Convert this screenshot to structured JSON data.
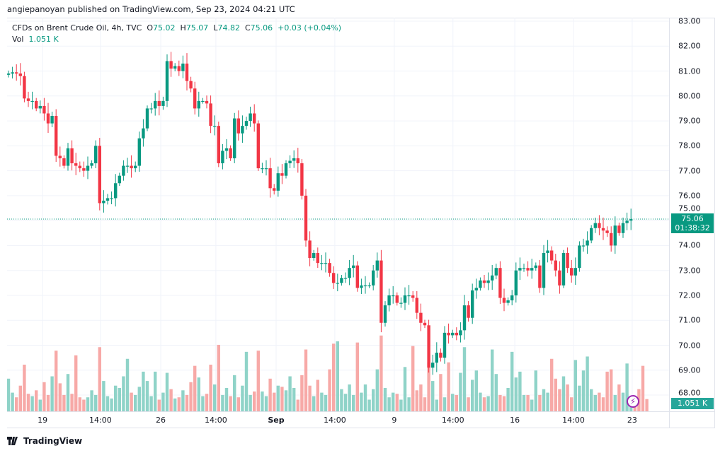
{
  "header": {
    "published": "angiepanoyan published on TradingView.com, Sep 23, 2024 04:21 UTC"
  },
  "legend": {
    "symbol": "CFDs on Brent Crude Oil, 4h, TVC",
    "o_label": "O",
    "o": "75.02",
    "h_label": "H",
    "h": "75.07",
    "l_label": "L",
    "l": "74.82",
    "c_label": "C",
    "c": "75.06",
    "change": "+0.03 (+0.04%)",
    "vol_label": "Vol",
    "vol": "1.051 K"
  },
  "price_label": {
    "price": "75.06",
    "countdown": "01:38:32"
  },
  "volume_label": "1.051 K",
  "footer": {
    "brand": "TradingView"
  },
  "colors": {
    "up": "#089981",
    "down": "#f23645",
    "vol_up": "#8fd3c8",
    "vol_down": "#f7a9a7",
    "line": "#089981"
  },
  "chart_data": {
    "type": "candlestick",
    "title": "CFDs on Brent Crude Oil, 4h, TVC",
    "ylim": [
      67.5,
      83.2
    ],
    "y_ticks": [
      "68.00",
      "69.00",
      "70.00",
      "71.00",
      "72.00",
      "73.00",
      "74.00",
      "75.00",
      "76.00",
      "77.00",
      "78.00",
      "79.00",
      "80.00",
      "81.00",
      "82.00",
      "83.00"
    ],
    "x_ticks": [
      {
        "label": "19",
        "bar": 8.6
      },
      {
        "label": "14:00",
        "bar": 23.2
      },
      {
        "label": "26",
        "bar": 38.4
      },
      {
        "label": "14:00",
        "bar": 52.3
      },
      {
        "label": "Sep",
        "bar": 67.5
      },
      {
        "label": "14:00",
        "bar": 82.3
      },
      {
        "label": "9",
        "bar": 97.3
      },
      {
        "label": "14:00",
        "bar": 112.1
      },
      {
        "label": "16",
        "bar": 127.7
      },
      {
        "label": "14:00",
        "bar": 142.5
      },
      {
        "label": "23",
        "bar": 157.3
      }
    ],
    "first_open": 80.85,
    "closes": [
      80.9,
      80.95,
      80.9,
      80.8,
      79.9,
      79.8,
      79.8,
      79.5,
      79.6,
      79.3,
      78.9,
      79.2,
      77.6,
      77.5,
      77.2,
      77.9,
      77.3,
      77.2,
      77.1,
      77.0,
      77.2,
      77.3,
      78.0,
      75.7,
      75.8,
      75.9,
      75.9,
      76.5,
      76.8,
      77.2,
      77.2,
      77.1,
      77.2,
      78.3,
      78.7,
      79.5,
      79.5,
      79.8,
      79.6,
      79.8,
      81.4,
      81.1,
      81.2,
      81.0,
      81.3,
      80.6,
      80.3,
      79.5,
      79.8,
      79.8,
      79.7,
      78.8,
      78.8,
      77.3,
      77.8,
      77.9,
      77.5,
      79.1,
      78.5,
      78.8,
      79.0,
      79.3,
      78.9,
      77.1,
      77.1,
      77.1,
      76.3,
      76.2,
      76.9,
      76.8,
      77.3,
      77.4,
      77.5,
      77.3,
      76.0,
      74.2,
      73.5,
      73.7,
      73.3,
      73.3,
      73.3,
      72.9,
      72.5,
      72.5,
      72.7,
      72.7,
      73.1,
      73.2,
      72.3,
      72.4,
      72.4,
      72.4,
      73.0,
      73.4,
      70.9,
      71.6,
      72.0,
      72.0,
      71.7,
      71.7,
      72.0,
      72.0,
      71.9,
      71.3,
      70.9,
      70.8,
      69.1,
      69.3,
      69.7,
      69.5,
      70.5,
      70.4,
      70.5,
      70.4,
      70.6,
      71.6,
      71.1,
      72.2,
      72.3,
      72.6,
      72.5,
      72.6,
      72.8,
      73.1,
      71.9,
      71.7,
      71.8,
      72.0,
      73.0,
      73.1,
      73.1,
      73.0,
      73.1,
      73.2,
      72.3,
      73.7,
      73.8,
      73.4,
      73.0,
      72.4,
      73.7,
      73.1,
      72.8,
      73.1,
      74.0,
      74.0,
      74.2,
      74.7,
      74.9,
      74.7,
      74.6,
      74.5,
      74.0,
      74.8,
      74.5,
      74.9,
      75.0,
      75.06
    ],
    "volumes_k": [
      2.8,
      1.6,
      1.2,
      2.2,
      4.0,
      1.5,
      1.3,
      1.8,
      1.0,
      2.5,
      1.4,
      3.0,
      5.2,
      2.4,
      1.4,
      3.2,
      1.5,
      4.8,
      1.2,
      1.0,
      1.2,
      1.8,
      1.4,
      5.5,
      2.6,
      1.3,
      1.1,
      2.2,
      2.0,
      3.0,
      4.5,
      1.6,
      1.4,
      2.1,
      3.4,
      2.6,
      1.3,
      3.4,
      1.0,
      1.6,
      3.3,
      1.9,
      1.1,
      1.2,
      1.8,
      1.4,
      2.5,
      3.9,
      2.9,
      1.3,
      1.5,
      4.0,
      2.3,
      5.7,
      1.4,
      2.0,
      1.3,
      3.1,
      1.2,
      2.2,
      5.1,
      1.4,
      1.7,
      5.2,
      1.7,
      1.3,
      2.8,
      1.6,
      2.2,
      2.1,
      1.8,
      3.0,
      2.0,
      1.0,
      3.1,
      5.3,
      2.2,
      1.3,
      2.7,
      1.6,
      1.4,
      3.6,
      5.8,
      6.0,
      1.9,
      1.5,
      2.3,
      1.4,
      5.9,
      1.6,
      2.3,
      1.0,
      1.9,
      3.6,
      6.5,
      2.0,
      1.2,
      1.6,
      1.5,
      1.0,
      3.8,
      1.2,
      5.6,
      1.8,
      2.3,
      1.2,
      4.2,
      2.6,
      1.0,
      3.2,
      1.2,
      4.2,
      1.5,
      1.4,
      3.3,
      5.5,
      1.2,
      2.7,
      3.5,
      1.6,
      1.2,
      1.3,
      5.3,
      3.2,
      1.4,
      1.3,
      2.0,
      5.1,
      2.9,
      3.4,
      1.4,
      1.4,
      1.0,
      3.5,
      1.4,
      1.9,
      1.6,
      4.5,
      2.8,
      1.9,
      3.0,
      2.3,
      1.2,
      4.4,
      2.2,
      3.5,
      4.7,
      1.9,
      1.4,
      1.6,
      1.2,
      3.4,
      3.6,
      1.4,
      2.3,
      1.6,
      4.1,
      1.1,
      1.3,
      1.9,
      3.9,
      1.05
    ]
  }
}
